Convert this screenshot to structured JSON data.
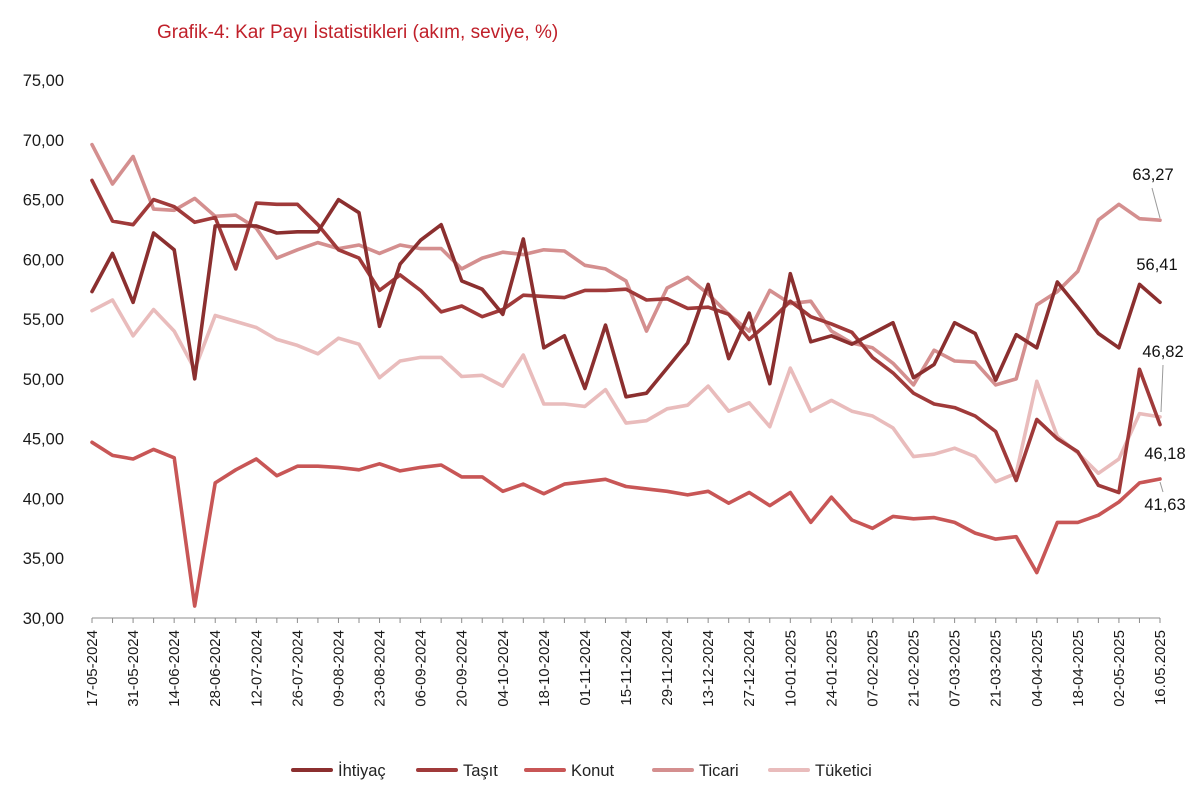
{
  "chart_data": {
    "type": "line",
    "title": "Grafik-4: Kar Payı İstatistikleri (akım, seviye, %)",
    "ylim": [
      30,
      75
    ],
    "ytick_labels": [
      "30,00",
      "35,00",
      "40,00",
      "45,00",
      "50,00",
      "55,00",
      "60,00",
      "65,00",
      "70,00",
      "75,00"
    ],
    "x": [
      "17-05-2024",
      "24-05-2024",
      "31-05-2024",
      "07-06-2024",
      "14-06-2024",
      "21-06-2024",
      "28-06-2024",
      "05-07-2024",
      "12-07-2024",
      "19-07-2024",
      "26-07-2024",
      "02-08-2024",
      "09-08-2024",
      "16-08-2024",
      "23-08-2024",
      "30-08-2024",
      "06-09-2024",
      "13-09-2024",
      "20-09-2024",
      "27-09-2024",
      "04-10-2024",
      "11-10-2024",
      "18-10-2024",
      "25-10-2024",
      "01-11-2024",
      "08-11-2024",
      "15-11-2024",
      "22-11-2024",
      "29-11-2024",
      "06-12-2024",
      "13-12-2024",
      "20-12-2024",
      "27-12-2024",
      "03-01-2025",
      "10-01-2025",
      "17-01-2025",
      "24-01-2025",
      "31-01-2025",
      "07-02-2025",
      "14-02-2025",
      "21-02-2025",
      "28-02-2025",
      "07-03-2025",
      "14-03-2025",
      "21-03-2025",
      "28-03-2025",
      "04-04-2025",
      "11-04-2025",
      "18-04-2025",
      "25-04-2025",
      "02-05-2025",
      "09-05-2025",
      "16.05.2025"
    ],
    "x_tick_labels": [
      "17-05-2024",
      "31-05-2024",
      "14-06-2024",
      "28-06-2024",
      "12-07-2024",
      "26-07-2024",
      "09-08-2024",
      "23-08-2024",
      "06-09-2024",
      "20-09-2024",
      "04-10-2024",
      "18-10-2024",
      "01-11-2024",
      "15-11-2024",
      "29-11-2024",
      "13-12-2024",
      "27-12-2024",
      "10-01-2025",
      "24-01-2025",
      "07-02-2025",
      "21-02-2025",
      "07-03-2025",
      "21-03-2025",
      "04-04-2025",
      "18-04-2025",
      "02-05-2025",
      "16.05.2025"
    ],
    "legend_position": "bottom",
    "grid": false,
    "series": [
      {
        "name": "İhtiyaç",
        "color": "#8b2f2f",
        "end_label": "56,41",
        "values": [
          57.3,
          60.5,
          56.4,
          62.2,
          60.8,
          50.0,
          62.8,
          62.8,
          62.8,
          62.2,
          62.3,
          62.3,
          65.0,
          63.9,
          54.4,
          59.6,
          61.6,
          62.9,
          58.2,
          57.5,
          55.4,
          61.7,
          52.6,
          53.6,
          49.2,
          54.5,
          48.5,
          48.8,
          50.9,
          53.0,
          57.9,
          51.7,
          55.5,
          49.6,
          58.8,
          53.1,
          53.6,
          52.9,
          53.8,
          54.7,
          50.1,
          51.2,
          54.7,
          53.8,
          49.9,
          53.7,
          52.6,
          58.1,
          56.0,
          53.8,
          52.6,
          57.9,
          56.41
        ]
      },
      {
        "name": "Taşıt",
        "color": "#a03a3a",
        "end_label": "46,18",
        "values": [
          66.6,
          63.2,
          62.9,
          65.0,
          64.4,
          63.1,
          63.5,
          59.2,
          64.7,
          64.6,
          64.6,
          62.9,
          60.8,
          60.1,
          57.4,
          58.7,
          57.4,
          55.6,
          56.1,
          55.2,
          55.8,
          57.0,
          56.9,
          56.8,
          57.4,
          57.4,
          57.5,
          56.6,
          56.7,
          55.9,
          56.0,
          55.4,
          53.3,
          54.8,
          56.5,
          55.2,
          54.6,
          53.9,
          51.8,
          50.5,
          48.8,
          47.9,
          47.6,
          46.9,
          45.6,
          41.5,
          46.6,
          45.0,
          43.9,
          41.1,
          40.5,
          50.8,
          46.18
        ]
      },
      {
        "name": "Konut",
        "color": "#c85656",
        "end_label": "41,63",
        "values": [
          44.7,
          43.6,
          43.3,
          44.1,
          43.4,
          31.0,
          41.3,
          42.4,
          43.3,
          41.9,
          42.7,
          42.7,
          42.6,
          42.4,
          42.9,
          42.3,
          42.6,
          42.8,
          41.8,
          41.8,
          40.6,
          41.2,
          40.4,
          41.2,
          41.4,
          41.6,
          41.0,
          40.8,
          40.6,
          40.3,
          40.6,
          39.6,
          40.5,
          39.4,
          40.5,
          38.0,
          40.1,
          38.2,
          37.5,
          38.5,
          38.3,
          38.4,
          38.0,
          37.1,
          36.6,
          36.8,
          33.8,
          38.0,
          38.0,
          38.6,
          39.7,
          41.3,
          41.63
        ]
      },
      {
        "name": "Ticari",
        "color": "#d48f8f",
        "end_label": "63,27",
        "values": [
          69.6,
          66.3,
          68.6,
          64.2,
          64.1,
          65.1,
          63.6,
          63.7,
          62.6,
          60.1,
          60.8,
          61.4,
          60.9,
          61.2,
          60.5,
          61.2,
          60.9,
          60.9,
          59.2,
          60.1,
          60.6,
          60.4,
          60.8,
          60.7,
          59.5,
          59.2,
          58.2,
          54.0,
          57.6,
          58.5,
          57.1,
          55.4,
          54.0,
          57.4,
          56.3,
          56.5,
          54.0,
          53.0,
          52.6,
          51.3,
          49.5,
          52.4,
          51.5,
          51.4,
          49.5,
          50.0,
          56.2,
          57.3,
          59.0,
          63.3,
          64.6,
          63.4,
          63.27
        ]
      },
      {
        "name": "Tüketici",
        "color": "#e9bcbc",
        "end_label": "46,82",
        "values": [
          55.7,
          56.6,
          53.6,
          55.8,
          54.0,
          50.8,
          55.3,
          54.8,
          54.3,
          53.3,
          52.8,
          52.1,
          53.4,
          52.9,
          50.1,
          51.5,
          51.8,
          51.8,
          50.2,
          50.3,
          49.4,
          52.0,
          47.9,
          47.9,
          47.7,
          49.1,
          46.3,
          46.5,
          47.5,
          47.8,
          49.4,
          47.3,
          48.0,
          46.0,
          50.9,
          47.3,
          48.2,
          47.3,
          46.9,
          45.9,
          43.5,
          43.7,
          44.2,
          43.5,
          41.4,
          42.1,
          49.8,
          45.2,
          43.8,
          42.1,
          43.3,
          47.1,
          46.82
        ]
      }
    ]
  }
}
